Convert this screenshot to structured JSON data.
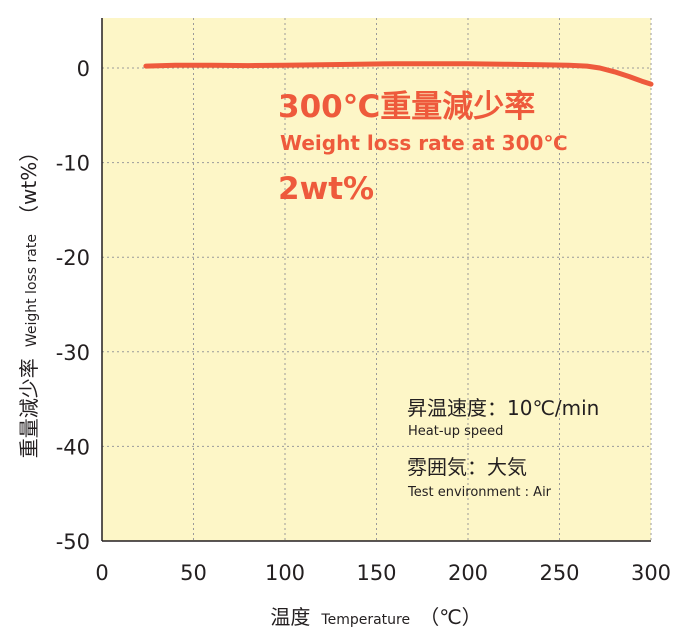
{
  "chart_data": {
    "type": "line",
    "xlabel_jp": "温度",
    "xlabel_en": "Temperature",
    "xunit": "（℃）",
    "ylabel_jp": "重量減少率",
    "ylabel_en": "Weight loss rate",
    "yunit": "（wt%）",
    "xlim": [
      0,
      300
    ],
    "ylim": [
      -50,
      5
    ],
    "xticks": [
      0,
      50,
      100,
      150,
      200,
      250,
      300
    ],
    "yticks": [
      0,
      -10,
      -20,
      -30,
      -40,
      -50
    ],
    "grid": "dotted",
    "series": [
      {
        "color": "#ee5a3c",
        "x": [
          24,
          40,
          60,
          80,
          100,
          120,
          140,
          160,
          180,
          200,
          220,
          240,
          255,
          265,
          272,
          280,
          288,
          295,
          300
        ],
        "y": [
          0.2,
          0.3,
          0.3,
          0.25,
          0.3,
          0.35,
          0.4,
          0.45,
          0.45,
          0.45,
          0.4,
          0.35,
          0.3,
          0.2,
          0.0,
          -0.4,
          -0.9,
          -1.4,
          -1.7
        ]
      }
    ],
    "annotations": {
      "loss_title_jp": "300℃重量減少率",
      "loss_title_en": "Weight loss rate at 300℃",
      "loss_value": "2wt%",
      "heating_jp": "昇温速度：10℃/min",
      "heating_en": "Heat-up speed",
      "env_jp": "雰囲気：大気",
      "env_en": "Test environment : Air"
    }
  },
  "colors": {
    "plot_background": "#fdf6c7",
    "accent": "#ee5a3c",
    "axis": "#231f20",
    "grid": "#9a9a9a"
  }
}
